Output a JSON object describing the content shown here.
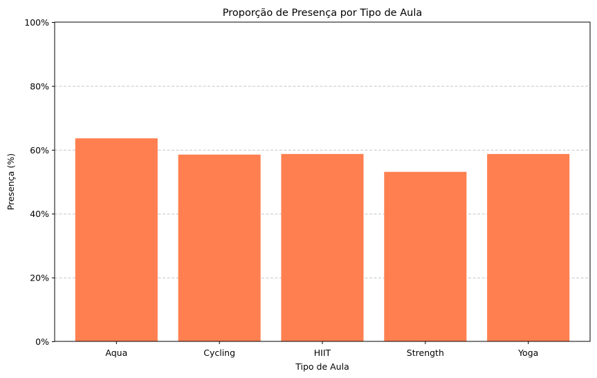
{
  "chart_data": {
    "type": "bar",
    "title": "Proporção de Presença por Tipo de Aula",
    "xlabel": "Tipo de Aula",
    "ylabel": "Presença (%)",
    "categories": [
      "Aqua",
      "Cycling",
      "HIIT",
      "Strength",
      "Yoga"
    ],
    "values": [
      63.6,
      58.5,
      58.7,
      53.1,
      58.7
    ],
    "ylim": [
      0,
      100
    ],
    "yticks": [
      0,
      20,
      40,
      60,
      80,
      100
    ],
    "ytick_labels": [
      "0%",
      "20%",
      "40%",
      "60%",
      "80%",
      "100%"
    ],
    "grid": "horizontal dashed",
    "bar_color": "#ff7f50",
    "grid_color": "#c4c4c4"
  }
}
